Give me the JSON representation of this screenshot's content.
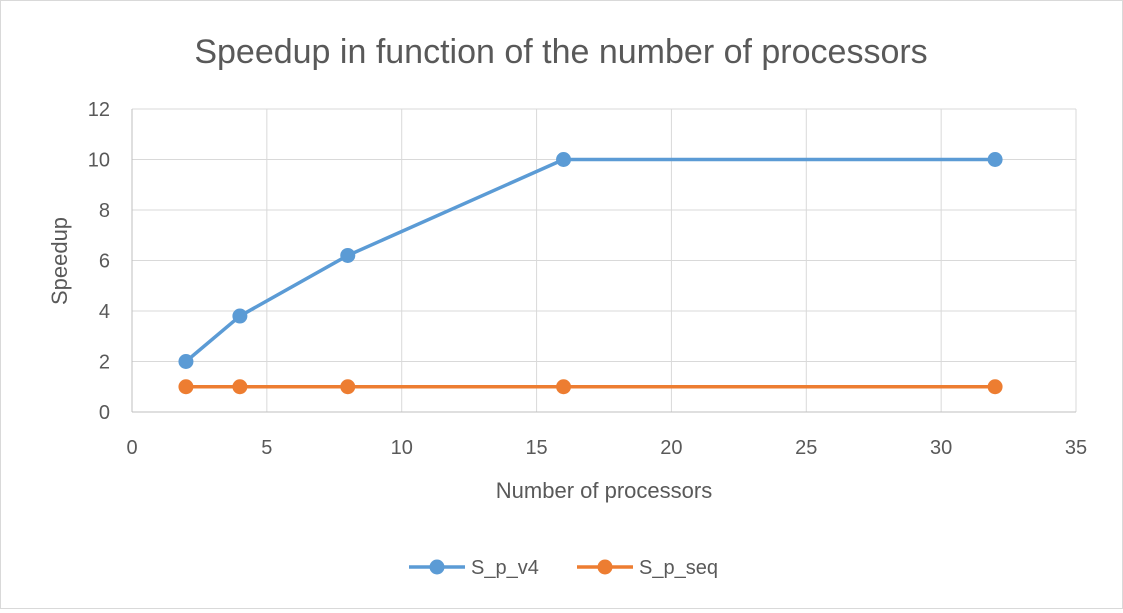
{
  "chart_data": {
    "type": "scatter",
    "title": "Speedup in function of the number of processors",
    "xlabel": "Number of processors",
    "ylabel": "Speedup",
    "xlim": [
      0,
      35
    ],
    "ylim": [
      0,
      12
    ],
    "xticks": [
      0,
      5,
      10,
      15,
      20,
      25,
      30,
      35
    ],
    "yticks": [
      0,
      2,
      4,
      6,
      8,
      10,
      12
    ],
    "grid": true,
    "legend_position": "bottom",
    "series": [
      {
        "name": "S_p_v4",
        "color": "#5b9bd5",
        "x": [
          2,
          4,
          8,
          16,
          32
        ],
        "y": [
          2,
          3.8,
          6.2,
          10,
          10
        ]
      },
      {
        "name": "S_p_seq",
        "color": "#ed7d31",
        "x": [
          2,
          4,
          8,
          16,
          32
        ],
        "y": [
          1,
          1,
          1,
          1,
          1
        ]
      }
    ]
  }
}
